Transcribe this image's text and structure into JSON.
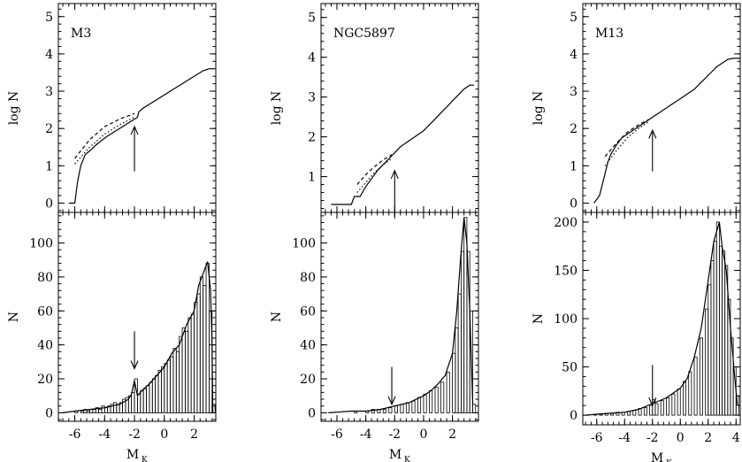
{
  "chart_data": [
    {
      "type": "line",
      "cluster": "M3",
      "top": {
        "label": "M3",
        "ylabel": "log N",
        "ylim": [
          -0.25,
          5.35
        ],
        "yticks": [
          0,
          1,
          2,
          3,
          4,
          5
        ],
        "arrow": {
          "x": -2.0,
          "y_tail": 0.85,
          "y_head": 2.05
        },
        "series": [
          {
            "style": "solid",
            "x": [
              -6.4,
              -6.0,
              -5.9,
              -5.8,
              -5.6,
              -5.3,
              -5.0,
              -4.6,
              -4.2,
              -3.8,
              -3.4,
              -3.0,
              -2.6,
              -2.2,
              -1.8,
              -1.7,
              -1.4,
              -1.0,
              -0.6,
              -0.2,
              0.2,
              0.6,
              1.0,
              1.4,
              1.8,
              2.2,
              2.6,
              3.0,
              3.3
            ],
            "y": [
              0,
              0,
              0.3,
              0.6,
              1.0,
              1.3,
              1.4,
              1.55,
              1.68,
              1.8,
              1.9,
              2.0,
              2.1,
              2.2,
              2.3,
              2.45,
              2.55,
              2.65,
              2.75,
              2.85,
              2.95,
              3.05,
              3.15,
              3.25,
              3.35,
              3.45,
              3.55,
              3.6,
              3.6
            ]
          },
          {
            "style": "dashed",
            "x": [
              -6.0,
              -5.0,
              -4.0,
              -3.0,
              -2.0
            ],
            "y": [
              1.2,
              1.7,
              2.05,
              2.25,
              2.4
            ]
          },
          {
            "style": "dotted",
            "x": [
              -6.0,
              -5.0,
              -4.0,
              -3.0,
              -2.0
            ],
            "y": [
              1.05,
              1.5,
              1.85,
              2.1,
              2.3
            ]
          }
        ]
      },
      "bottom": {
        "ylabel": "N",
        "ylim": [
          -5,
          118
        ],
        "yticks": [
          0,
          20,
          40,
          60,
          80,
          100
        ],
        "arrow": {
          "x": -2.0,
          "y_tail": 48,
          "y_head": 26
        },
        "hist": {
          "x": [
            -6.4,
            -6.2,
            -6.0,
            -5.8,
            -5.6,
            -5.4,
            -5.2,
            -5.0,
            -4.8,
            -4.6,
            -4.4,
            -4.2,
            -4.0,
            -3.8,
            -3.6,
            -3.4,
            -3.2,
            -3.0,
            -2.8,
            -2.6,
            -2.4,
            -2.2,
            -2.0,
            -1.8,
            -1.6,
            -1.4,
            -1.2,
            -1.0,
            -0.8,
            -0.6,
            -0.4,
            -0.2,
            0.0,
            0.2,
            0.4,
            0.6,
            0.8,
            1.0,
            1.2,
            1.4,
            1.6,
            1.8,
            2.0,
            2.2,
            2.4,
            2.6,
            2.8,
            3.0,
            3.2
          ],
          "y": [
            0,
            0,
            1,
            0,
            1,
            2,
            1,
            2,
            2,
            3,
            2,
            4,
            3,
            4,
            5,
            6,
            5,
            6,
            8,
            9,
            10,
            12,
            20,
            11,
            13,
            14,
            16,
            18,
            20,
            22,
            25,
            27,
            29,
            31,
            33,
            38,
            36,
            45,
            50,
            48,
            56,
            58,
            65,
            70,
            80,
            75,
            88,
            60,
            5
          ]
        },
        "series": [
          {
            "style": "solid",
            "x": [
              -6.8,
              -6.0,
              -5.0,
              -4.0,
              -3.0,
              -2.4,
              -2.2,
              -2.0,
              -1.8,
              -1.4,
              -1.0,
              -0.5,
              0.0,
              0.5,
              1.0,
              1.5,
              2.0,
              2.3,
              2.6,
              2.9,
              3.1,
              3.2,
              3.25
            ],
            "y": [
              0,
              1,
              2,
              3,
              5,
              8,
              11,
              19,
              10,
              14,
              17,
              22,
              27,
              35,
              40,
              52,
              60,
              75,
              82,
              89,
              72,
              40,
              0
            ]
          }
        ]
      },
      "xlabel": "M",
      "xlabel_sub": "K",
      "xlim": [
        -7.1,
        3.45
      ],
      "xticks": [
        -6,
        -4,
        -2,
        0,
        2
      ]
    },
    {
      "type": "line",
      "cluster": "NGC5897",
      "top": {
        "label": "NGC5897",
        "ylabel": "log N",
        "ylim": [
          0.1,
          5.35
        ],
        "yticks": [
          1,
          2,
          3,
          4,
          5
        ],
        "arrow": {
          "x": -2.0,
          "y_tail": 0.0,
          "y_head": 1.15
        },
        "series": [
          {
            "style": "solid",
            "x": [
              -6.4,
              -5.0,
              -4.8,
              -4.4,
              -4.0,
              -3.6,
              -3.2,
              -2.8,
              -2.4,
              -2.0,
              -1.6,
              -1.2,
              -0.8,
              -0.4,
              0.0,
              0.4,
              0.8,
              1.2,
              1.6,
              2.0,
              2.4,
              2.8,
              3.2,
              3.5
            ],
            "y": [
              0.3,
              0.3,
              0.5,
              0.5,
              0.75,
              0.95,
              1.15,
              1.3,
              1.45,
              1.6,
              1.75,
              1.85,
              1.95,
              2.05,
              2.15,
              2.3,
              2.45,
              2.6,
              2.75,
              2.9,
              3.05,
              3.2,
              3.3,
              3.3
            ]
          },
          {
            "style": "dashed",
            "x": [
              -4.6,
              -4.0,
              -3.4,
              -2.8,
              -2.2
            ],
            "y": [
              0.8,
              1.05,
              1.25,
              1.42,
              1.55
            ]
          },
          {
            "style": "dotted",
            "x": [
              -4.6,
              -4.0,
              -3.4,
              -2.8,
              -2.2
            ],
            "y": [
              0.6,
              0.85,
              1.1,
              1.3,
              1.45
            ]
          }
        ]
      },
      "bottom": {
        "ylabel": "N",
        "ylim": [
          -5,
          118
        ],
        "yticks": [
          0,
          20,
          40,
          60,
          80,
          100
        ],
        "arrow": {
          "x": -2.2,
          "y_tail": 27,
          "y_head": 5
        },
        "hist": {
          "x": [
            -6.4,
            -6.0,
            -5.6,
            -5.2,
            -4.8,
            -4.4,
            -4.0,
            -3.6,
            -3.2,
            -2.8,
            -2.4,
            -2.0,
            -1.6,
            -1.2,
            -0.8,
            -0.4,
            0.0,
            0.4,
            0.8,
            1.2,
            1.6,
            2.0,
            2.2,
            2.4,
            2.6,
            2.8,
            3.0,
            3.2,
            3.4
          ],
          "y": [
            0,
            0,
            0,
            0,
            1,
            0,
            1,
            2,
            2,
            2,
            3,
            4,
            5,
            6,
            7,
            9,
            11,
            13,
            15,
            18,
            24,
            35,
            50,
            70,
            95,
            115,
            95,
            60,
            5
          ]
        },
        "series": [
          {
            "style": "solid",
            "x": [
              -6.6,
              -5.0,
              -4.0,
              -3.0,
              -2.0,
              -1.0,
              0.0,
              0.5,
              1.0,
              1.5,
              2.0,
              2.3,
              2.6,
              2.8,
              3.0,
              3.2,
              3.4
            ],
            "y": [
              0,
              1,
              1,
              2,
              4,
              6,
              10,
              13,
              17,
              22,
              35,
              60,
              95,
              115,
              100,
              60,
              5
            ]
          }
        ]
      },
      "xlabel": "M",
      "xlabel_sub": "K",
      "xlim": [
        -7.1,
        3.8
      ],
      "xticks": [
        -6,
        -4,
        -2,
        0,
        2
      ]
    },
    {
      "type": "line",
      "cluster": "M13",
      "top": {
        "label": "M13",
        "ylabel": "log N",
        "ylim": [
          -0.25,
          5.35
        ],
        "yticks": [
          0,
          1,
          2,
          3,
          4,
          5
        ],
        "arrow": {
          "x": -2.0,
          "y_tail": 0.85,
          "y_head": 1.95
        },
        "series": [
          {
            "style": "solid",
            "x": [
              -6.2,
              -5.8,
              -5.6,
              -5.4,
              -5.2,
              -5.0,
              -4.6,
              -4.2,
              -3.8,
              -3.4,
              -3.0,
              -2.6,
              -2.2,
              -1.8,
              -1.4,
              -1.0,
              -0.6,
              -0.2,
              0.2,
              0.6,
              1.0,
              1.4,
              1.8,
              2.2,
              2.6,
              3.0,
              3.4,
              3.8,
              4.3
            ],
            "y": [
              0,
              0.2,
              0.5,
              0.8,
              1.1,
              1.3,
              1.55,
              1.75,
              1.85,
              1.95,
              2.05,
              2.15,
              2.25,
              2.35,
              2.45,
              2.55,
              2.65,
              2.75,
              2.85,
              2.95,
              3.05,
              3.2,
              3.35,
              3.5,
              3.65,
              3.75,
              3.85,
              3.88,
              3.88
            ]
          },
          {
            "style": "dashed",
            "x": [
              -5.4,
              -4.6,
              -3.8,
              -3.0,
              -2.2
            ],
            "y": [
              1.25,
              1.6,
              1.9,
              2.1,
              2.25
            ]
          },
          {
            "style": "dotted",
            "x": [
              -5.4,
              -4.6,
              -3.8,
              -3.0,
              -2.2
            ],
            "y": [
              1.0,
              1.4,
              1.75,
              2.0,
              2.2
            ]
          }
        ]
      },
      "bottom": {
        "ylabel": "N",
        "ylim": [
          -10,
          210
        ],
        "yticks": [
          0,
          50,
          100,
          150,
          200
        ],
        "arrow": {
          "x": -2.0,
          "y_tail": 52,
          "y_head": 10
        },
        "hist": {
          "x": [
            -6.6,
            -6.2,
            -5.8,
            -5.4,
            -5.0,
            -4.6,
            -4.2,
            -3.8,
            -3.4,
            -3.0,
            -2.6,
            -2.2,
            -2.0,
            -1.8,
            -1.4,
            -1.0,
            -0.6,
            -0.2,
            0.2,
            0.6,
            1.0,
            1.4,
            1.8,
            2.0,
            2.2,
            2.4,
            2.6,
            2.8,
            3.0,
            3.2,
            3.4,
            3.6,
            3.8,
            4.0
          ],
          "y": [
            0,
            1,
            1,
            2,
            2,
            3,
            3,
            4,
            5,
            7,
            8,
            10,
            16,
            12,
            15,
            18,
            22,
            27,
            35,
            45,
            60,
            80,
            110,
            135,
            160,
            180,
            200,
            175,
            170,
            155,
            120,
            80,
            50,
            20
          ]
        },
        "series": [
          {
            "style": "solid",
            "x": [
              -6.8,
              -6.0,
              -5.0,
              -4.0,
              -3.0,
              -2.0,
              -1.0,
              0.0,
              0.5,
              1.0,
              1.5,
              2.0,
              2.4,
              2.8,
              3.0,
              3.3,
              3.6,
              3.9,
              4.1
            ],
            "y": [
              0,
              1,
              2,
              3,
              6,
              12,
              18,
              28,
              38,
              60,
              90,
              140,
              180,
              200,
              175,
              150,
              90,
              40,
              10
            ]
          }
        ]
      },
      "xlabel": "M",
      "xlabel_sub": "K",
      "xlim": [
        -7.0,
        4.3
      ],
      "xticks": [
        -6,
        -4,
        -2,
        0,
        2,
        4
      ]
    }
  ]
}
